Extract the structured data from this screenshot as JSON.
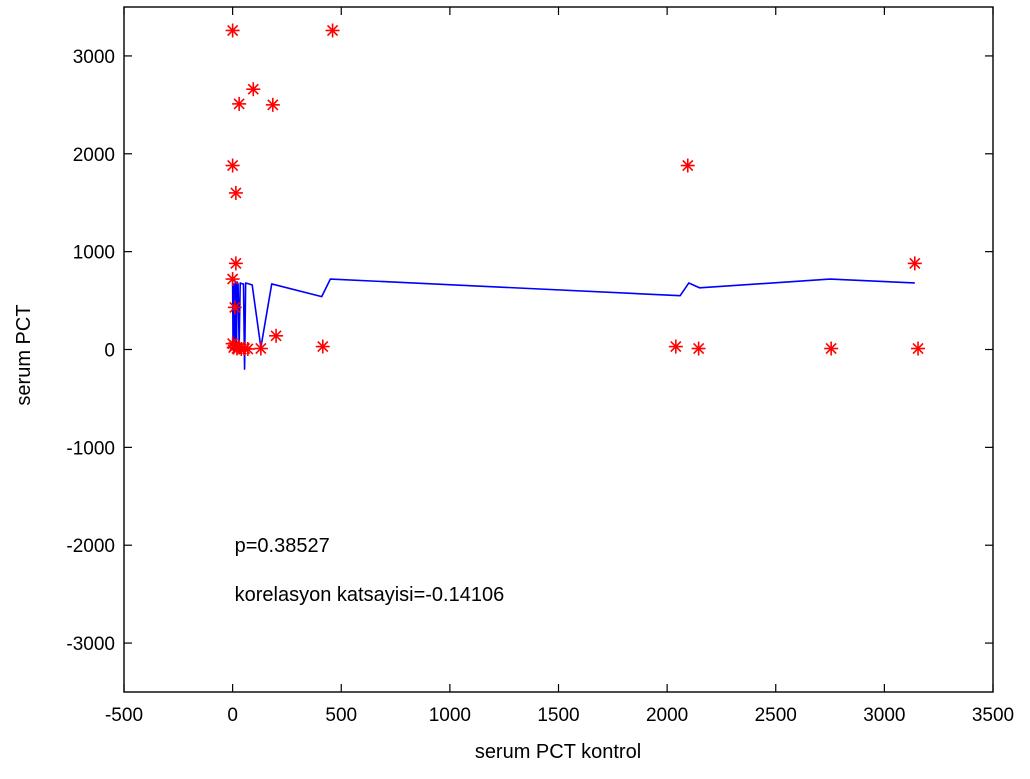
{
  "chart_data": {
    "type": "scatter",
    "title": "",
    "xlabel": "serum PCT kontrol",
    "ylabel": "serum PCT",
    "xlim": [
      -500,
      3500
    ],
    "ylim": [
      -3500,
      3500
    ],
    "xticks": [
      -500,
      0,
      500,
      1000,
      1500,
      2000,
      2500,
      3000,
      3500
    ],
    "yticks": [
      -3000,
      -2000,
      -1000,
      0,
      1000,
      2000,
      3000
    ],
    "grid": false,
    "colors": {
      "points": "#ff0000",
      "line": "#0000ff",
      "axes": "#000000"
    },
    "series": [
      {
        "kind": "points",
        "marker": "asterisk",
        "points": [
          [
            0,
            3260
          ],
          [
            460,
            3260
          ],
          [
            95,
            2660
          ],
          [
            30,
            2510
          ],
          [
            185,
            2500
          ],
          [
            0,
            1880
          ],
          [
            2095,
            1880
          ],
          [
            15,
            1600
          ],
          [
            15,
            880
          ],
          [
            3140,
            880
          ],
          [
            0,
            720
          ],
          [
            10,
            430
          ],
          [
            0,
            60
          ],
          [
            5,
            20
          ],
          [
            10,
            40
          ],
          [
            20,
            10
          ],
          [
            30,
            20
          ],
          [
            40,
            5
          ],
          [
            55,
            10
          ],
          [
            70,
            5
          ],
          [
            130,
            10
          ],
          [
            200,
            140
          ],
          [
            415,
            30
          ],
          [
            2040,
            30
          ],
          [
            2145,
            10
          ],
          [
            2755,
            10
          ],
          [
            3155,
            10
          ]
        ]
      },
      {
        "kind": "line",
        "points": [
          [
            0,
            690
          ],
          [
            2,
            0
          ],
          [
            4,
            670
          ],
          [
            6,
            20
          ],
          [
            8,
            650
          ],
          [
            10,
            30
          ],
          [
            12,
            700
          ],
          [
            14,
            40
          ],
          [
            16,
            680
          ],
          [
            18,
            10
          ],
          [
            20,
            690
          ],
          [
            25,
            670
          ],
          [
            30,
            30
          ],
          [
            35,
            680
          ],
          [
            45,
            670
          ],
          [
            50,
            670
          ],
          [
            55,
            -200
          ],
          [
            60,
            680
          ],
          [
            90,
            660
          ],
          [
            130,
            20
          ],
          [
            180,
            670
          ],
          [
            410,
            540
          ],
          [
            450,
            720
          ],
          [
            2060,
            550
          ],
          [
            2100,
            680
          ],
          [
            2150,
            630
          ],
          [
            2750,
            720
          ],
          [
            3140,
            680
          ]
        ]
      }
    ],
    "annotations": [
      {
        "text": "p=0.38527",
        "x": 0,
        "y": -2000
      },
      {
        "text": "korelasyon katsayisi=-0.14106",
        "x": 0,
        "y": -2500
      }
    ]
  }
}
